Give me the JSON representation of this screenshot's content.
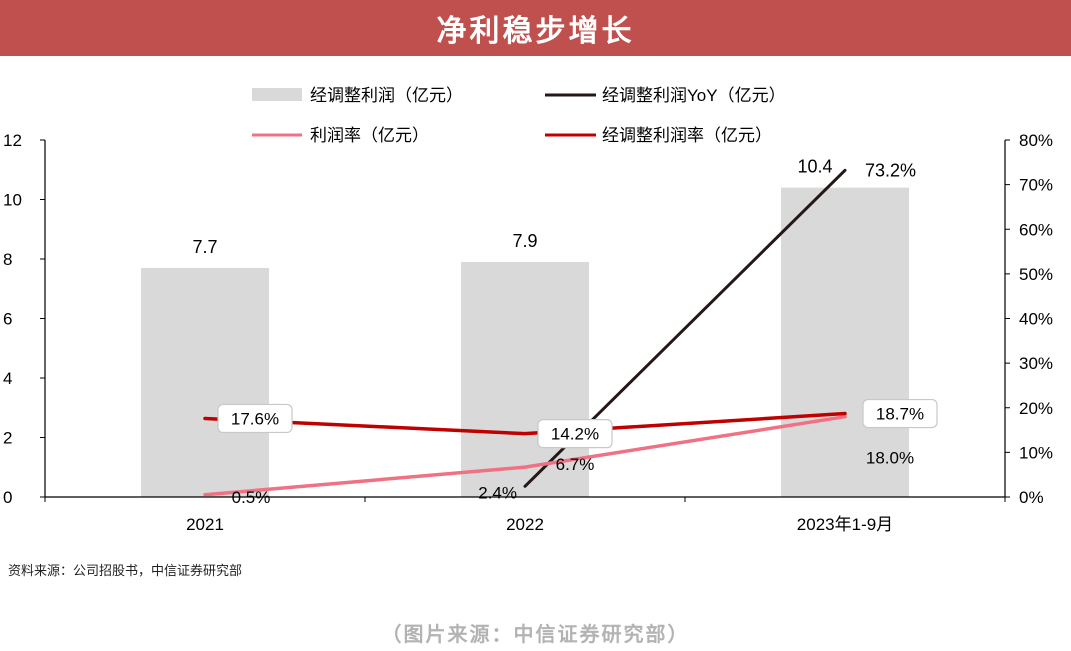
{
  "header": {
    "title": "净利稳步增长"
  },
  "chart_data": {
    "type": "bar",
    "categories": [
      "2021",
      "2022",
      "2023年1-9月"
    ],
    "left_axis": {
      "min": 0,
      "max": 12,
      "ticks": [
        "0",
        "2",
        "4",
        "6",
        "8",
        "10",
        "12"
      ]
    },
    "right_axis": {
      "min": 0,
      "max": 80,
      "ticks": [
        "0%",
        "10%",
        "20%",
        "30%",
        "40%",
        "50%",
        "60%",
        "70%",
        "80%"
      ]
    },
    "series": [
      {
        "name": "经调整利润（亿元）",
        "kind": "bar",
        "axis": "left",
        "color": "#d9d9d9",
        "values": [
          7.7,
          7.9,
          10.4
        ],
        "labels": [
          "7.7",
          "7.9",
          "10.4"
        ]
      },
      {
        "name": "经调整利润YoY（亿元）",
        "kind": "line",
        "axis": "right",
        "color": "#231815",
        "values": [
          null,
          2.4,
          73.2
        ],
        "labels": [
          "",
          "2.4%",
          "73.2%"
        ]
      },
      {
        "name": "利润率（亿元）",
        "kind": "line",
        "axis": "right",
        "color": "#f07183",
        "values": [
          0.5,
          6.7,
          18.0
        ],
        "labels": [
          "0.5%",
          "6.7%",
          "18.0%"
        ]
      },
      {
        "name": "经调整利润率（亿元）",
        "kind": "line",
        "axis": "right",
        "color": "#c00000",
        "values": [
          17.6,
          14.2,
          18.7
        ],
        "labels": [
          "17.6%",
          "14.2%",
          "18.7%"
        ]
      }
    ]
  },
  "footer": {
    "source": "资料来源：公司招股书，中信证券研究部",
    "caption": "（图片来源：中信证券研究部）"
  }
}
